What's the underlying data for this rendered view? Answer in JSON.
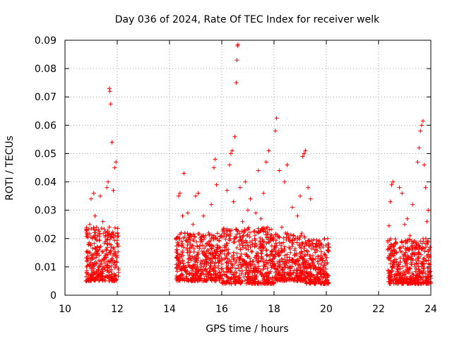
{
  "chart_data": {
    "type": "scatter",
    "title": "Day 036 of 2024, Rate Of TEC Index for receiver welk",
    "xlabel": "GPS time / hours",
    "ylabel": "ROTI / TECUs",
    "xlim": [
      10,
      24
    ],
    "ylim": [
      0,
      0.09
    ],
    "x_ticks": [
      10,
      12,
      14,
      16,
      18,
      20,
      22,
      24
    ],
    "y_ticks": [
      0,
      0.01,
      0.02,
      0.03,
      0.04,
      0.05,
      0.06,
      0.07,
      0.08,
      0.09
    ],
    "x_tick_labels": [
      "10",
      "12",
      "14",
      "16",
      "18",
      "20",
      "22",
      "24"
    ],
    "y_tick_labels": [
      "0",
      "0.01",
      "0.02",
      "0.03",
      "0.04",
      "0.05",
      "0.06",
      "0.07",
      "0.08",
      "0.09"
    ],
    "grid": true,
    "marker": "+",
    "color": "#ff0000",
    "series": [
      {
        "name": "ROTI",
        "points": [
          [
            10.85,
            0.012
          ],
          [
            10.9,
            0.018
          ],
          [
            10.95,
            0.025
          ],
          [
            11.0,
            0.034
          ],
          [
            11.05,
            0.011
          ],
          [
            11.1,
            0.036
          ],
          [
            11.15,
            0.028
          ],
          [
            11.2,
            0.014
          ],
          [
            11.25,
            0.007
          ],
          [
            11.3,
            0.016
          ],
          [
            11.35,
            0.035
          ],
          [
            11.4,
            0.009
          ],
          [
            11.45,
            0.026
          ],
          [
            11.5,
            0.013
          ],
          [
            11.55,
            0.019
          ],
          [
            11.6,
            0.038
          ],
          [
            11.65,
            0.04
          ],
          [
            11.7,
            0.073
          ],
          [
            11.72,
            0.072
          ],
          [
            11.75,
            0.0675
          ],
          [
            11.8,
            0.054
          ],
          [
            11.85,
            0.037
          ],
          [
            11.9,
            0.045
          ],
          [
            11.95,
            0.047
          ],
          [
            12.0,
            0.022
          ],
          [
            12.05,
            0.008
          ],
          [
            14.3,
            0.013
          ],
          [
            14.35,
            0.035
          ],
          [
            14.4,
            0.036
          ],
          [
            14.45,
            0.022
          ],
          [
            14.5,
            0.028
          ],
          [
            14.55,
            0.043
          ],
          [
            14.6,
            0.01
          ],
          [
            14.7,
            0.029
          ],
          [
            14.8,
            0.018
          ],
          [
            14.9,
            0.025
          ],
          [
            15.0,
            0.035
          ],
          [
            15.1,
            0.036
          ],
          [
            15.2,
            0.012
          ],
          [
            15.3,
            0.028
          ],
          [
            15.4,
            0.009
          ],
          [
            15.5,
            0.022
          ],
          [
            15.6,
            0.032
          ],
          [
            15.7,
            0.045
          ],
          [
            15.75,
            0.048
          ],
          [
            15.8,
            0.039
          ],
          [
            15.9,
            0.017
          ],
          [
            16.0,
            0.011
          ],
          [
            16.1,
            0.022
          ],
          [
            16.2,
            0.037
          ],
          [
            16.3,
            0.046
          ],
          [
            16.35,
            0.05
          ],
          [
            16.4,
            0.051
          ],
          [
            16.45,
            0.033
          ],
          [
            16.5,
            0.056
          ],
          [
            16.55,
            0.075
          ],
          [
            16.58,
            0.083
          ],
          [
            16.6,
            0.088
          ],
          [
            16.62,
            0.0885
          ],
          [
            16.7,
            0.038
          ],
          [
            16.8,
            0.026
          ],
          [
            16.9,
            0.04
          ],
          [
            17.0,
            0.03
          ],
          [
            17.1,
            0.034
          ],
          [
            17.2,
            0.012
          ],
          [
            17.3,
            0.029
          ],
          [
            17.4,
            0.044
          ],
          [
            17.5,
            0.027
          ],
          [
            17.6,
            0.036
          ],
          [
            17.7,
            0.047
          ],
          [
            17.8,
            0.051
          ],
          [
            17.9,
            0.02
          ],
          [
            18.0,
            0.014
          ],
          [
            18.05,
            0.058
          ],
          [
            18.1,
            0.0625
          ],
          [
            18.2,
            0.044
          ],
          [
            18.3,
            0.024
          ],
          [
            18.4,
            0.04
          ],
          [
            18.5,
            0.046
          ],
          [
            18.6,
            0.019
          ],
          [
            18.7,
            0.031
          ],
          [
            18.8,
            0.012
          ],
          [
            18.9,
            0.028
          ],
          [
            19.0,
            0.035
          ],
          [
            19.1,
            0.049
          ],
          [
            19.15,
            0.05
          ],
          [
            19.2,
            0.051
          ],
          [
            19.3,
            0.038
          ],
          [
            19.4,
            0.034
          ],
          [
            19.5,
            0.017
          ],
          [
            19.6,
            0.009
          ],
          [
            19.7,
            0.006
          ],
          [
            19.8,
            0.013
          ],
          [
            19.9,
            0.004
          ],
          [
            20.0,
            0.011
          ],
          [
            20.05,
            0.02
          ],
          [
            22.4,
            0.0245
          ],
          [
            22.45,
            0.033
          ],
          [
            22.5,
            0.039
          ],
          [
            22.55,
            0.04
          ],
          [
            22.6,
            0.01
          ],
          [
            22.7,
            0.015
          ],
          [
            22.8,
            0.038
          ],
          [
            22.9,
            0.036
          ],
          [
            23.0,
            0.025
          ],
          [
            23.1,
            0.027
          ],
          [
            23.2,
            0.021
          ],
          [
            23.3,
            0.032
          ],
          [
            23.4,
            0.01
          ],
          [
            23.5,
            0.047
          ],
          [
            23.55,
            0.052
          ],
          [
            23.6,
            0.058
          ],
          [
            23.65,
            0.06
          ],
          [
            23.7,
            0.0615
          ],
          [
            23.75,
            0.046
          ],
          [
            23.8,
            0.038
          ],
          [
            23.85,
            0.026
          ],
          [
            23.9,
            0.03
          ],
          [
            23.95,
            0.008
          ],
          [
            24.0,
            0.006
          ]
        ]
      }
    ],
    "dense_clusters": [
      {
        "x_start": 10.8,
        "x_end": 12.05,
        "y_low": 0.005,
        "y_high": 0.024
      },
      {
        "x_start": 14.25,
        "x_end": 16.0,
        "y_low": 0.005,
        "y_high": 0.022
      },
      {
        "x_start": 16.0,
        "x_end": 18.0,
        "y_low": 0.004,
        "y_high": 0.024
      },
      {
        "x_start": 18.0,
        "x_end": 19.2,
        "y_low": 0.005,
        "y_high": 0.022
      },
      {
        "x_start": 19.2,
        "x_end": 20.1,
        "y_low": 0.004,
        "y_high": 0.02
      },
      {
        "x_start": 22.35,
        "x_end": 24.0,
        "y_low": 0.004,
        "y_high": 0.02
      }
    ]
  }
}
